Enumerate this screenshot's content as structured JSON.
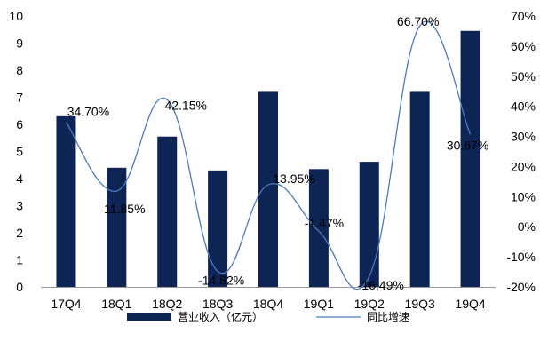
{
  "chart_data": {
    "type": "bar+line",
    "categories": [
      "17Q4",
      "18Q1",
      "18Q2",
      "18Q3",
      "18Q4",
      "19Q1",
      "19Q2",
      "19Q3",
      "19Q4"
    ],
    "series": [
      {
        "name": "营业收入（亿元）",
        "type": "bar",
        "axis": "left",
        "color": "#0d2454",
        "values": [
          6.3,
          4.4,
          5.55,
          4.3,
          7.2,
          4.35,
          4.62,
          7.2,
          9.45
        ]
      },
      {
        "name": "同比增速",
        "type": "line",
        "axis": "right",
        "color": "#4a7bc0",
        "values": [
          34.7,
          11.85,
          42.15,
          -14.82,
          13.95,
          -1.47,
          -16.49,
          66.7,
          30.67
        ],
        "labels": [
          "34.70%",
          "11.85%",
          "42.15%",
          "-14.82%",
          "13.95%",
          "-1.47%",
          "-16.49%",
          "66.70%",
          "30.67%"
        ]
      }
    ],
    "y_left": {
      "min": 0,
      "max": 10,
      "step": 1,
      "ticks": [
        "0",
        "1",
        "2",
        "3",
        "4",
        "5",
        "6",
        "7",
        "8",
        "9",
        "10"
      ]
    },
    "y_right": {
      "min": -20,
      "max": 70,
      "step": 10,
      "ticks": [
        "-20%",
        "-10%",
        "0%",
        "10%",
        "20%",
        "30%",
        "40%",
        "50%",
        "60%",
        "70%"
      ]
    },
    "grid": false,
    "legend_position": "bottom"
  }
}
